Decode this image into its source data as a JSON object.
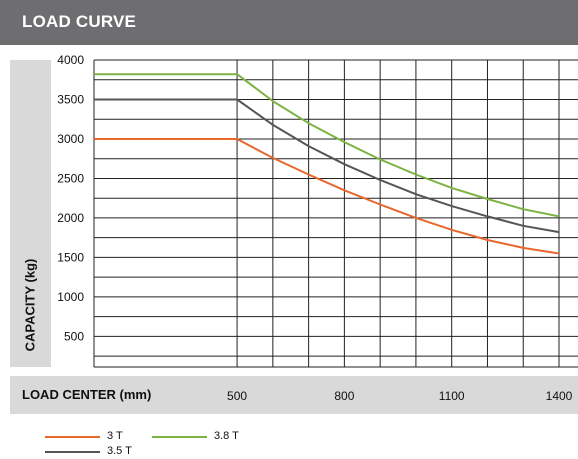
{
  "header": {
    "title": "LOAD CURVE"
  },
  "chart_data": {
    "type": "line",
    "title": "LOAD CURVE",
    "ylabel": "CAPACITY (kg)",
    "xlabel": "LOAD CENTER (mm)",
    "ylim": [
      0,
      4000
    ],
    "yticks": [
      500,
      1000,
      1500,
      2000,
      2500,
      3000,
      3500,
      4000
    ],
    "xticks": [
      500,
      800,
      1100,
      1400
    ],
    "grid": true,
    "legend": "bottom-left",
    "series": [
      {
        "name": "3 T",
        "color": "#e8672b",
        "x": [
          100,
          500,
          600,
          700,
          800,
          900,
          1000,
          1100,
          1200,
          1300,
          1400
        ],
        "values": [
          3000,
          3000,
          2760,
          2550,
          2350,
          2170,
          2000,
          1850,
          1720,
          1620,
          1550
        ]
      },
      {
        "name": "3.8 T",
        "color": "#7cb342",
        "x": [
          100,
          500,
          600,
          700,
          800,
          900,
          1000,
          1100,
          1200,
          1300,
          1400
        ],
        "values": [
          3820,
          3820,
          3480,
          3200,
          2960,
          2740,
          2550,
          2380,
          2240,
          2110,
          2020
        ]
      },
      {
        "name": "3.5 T",
        "color": "#555555",
        "x": [
          100,
          500,
          600,
          700,
          800,
          900,
          1000,
          1100,
          1200,
          1300,
          1400
        ],
        "values": [
          3500,
          3500,
          3180,
          2910,
          2680,
          2480,
          2300,
          2150,
          2020,
          1900,
          1820
        ]
      }
    ]
  }
}
